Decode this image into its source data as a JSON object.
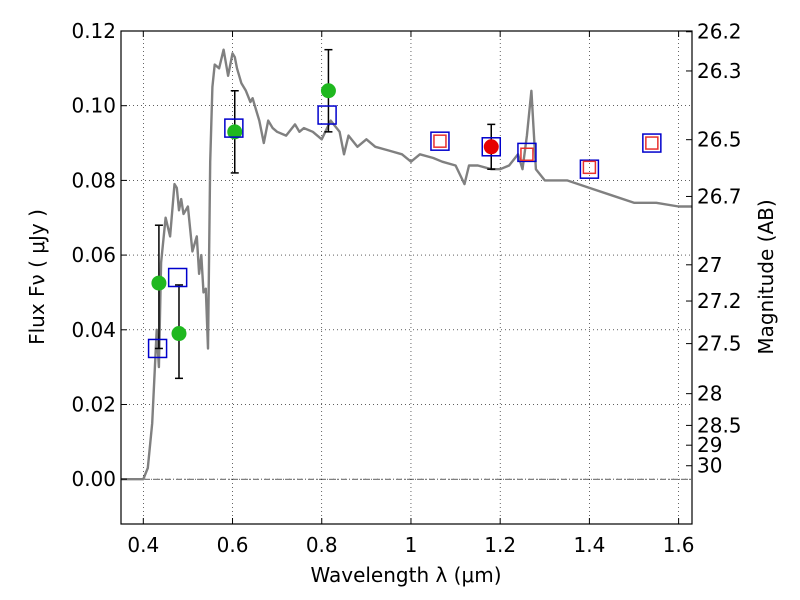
{
  "chart_data": {
    "type": "scatter",
    "xlabel": "Wavelength  λ (μm)",
    "ylabel": "Flux  Fν  ( μJy )",
    "ylabel_right": "Magnitude (AB)",
    "xlim": [
      0.35,
      1.63
    ],
    "ylim": [
      -0.012,
      0.12
    ],
    "grid": true,
    "x_ticks": [
      0.4,
      0.6,
      0.8,
      1.0,
      1.2,
      1.4,
      1.6
    ],
    "x_tick_labels": [
      "0.4",
      "0.6",
      "0.8",
      "1",
      "1.2",
      "1.4",
      "1.6"
    ],
    "y_ticks": [
      0.0,
      0.02,
      0.04,
      0.06,
      0.08,
      0.1,
      0.12
    ],
    "y_tick_labels": [
      "0.00",
      "0.02",
      "0.04",
      "0.06",
      "0.08",
      "0.10",
      "0.12"
    ],
    "right_ticks": [
      {
        "label": "26.2",
        "flux": 0.1198
      },
      {
        "label": "26.3",
        "flux": 0.1093
      },
      {
        "label": "26.5",
        "flux": 0.0909
      },
      {
        "label": "26.7",
        "flux": 0.0757
      },
      {
        "label": "27",
        "flux": 0.0574
      },
      {
        "label": "27.2",
        "flux": 0.0477
      },
      {
        "label": "27.5",
        "flux": 0.0363
      },
      {
        "label": "28",
        "flux": 0.0229
      },
      {
        "label": "28.5",
        "flux": 0.0144
      },
      {
        "label": "29",
        "flux": 0.0091
      },
      {
        "label": "30",
        "flux": 0.0036
      }
    ],
    "series": [
      {
        "kind": "line",
        "color": "#808080",
        "x": [
          0.35,
          0.4,
          0.41,
          0.42,
          0.43,
          0.435,
          0.44,
          0.45,
          0.46,
          0.47,
          0.475,
          0.48,
          0.485,
          0.49,
          0.5,
          0.51,
          0.52,
          0.525,
          0.53,
          0.535,
          0.54,
          0.545,
          0.55,
          0.555,
          0.56,
          0.57,
          0.58,
          0.59,
          0.6,
          0.605,
          0.61,
          0.62,
          0.63,
          0.64,
          0.645,
          0.65,
          0.66,
          0.67,
          0.68,
          0.69,
          0.7,
          0.72,
          0.74,
          0.75,
          0.76,
          0.78,
          0.8,
          0.82,
          0.84,
          0.85,
          0.86,
          0.88,
          0.9,
          0.92,
          0.95,
          0.98,
          1.0,
          1.02,
          1.05,
          1.07,
          1.1,
          1.12,
          1.13,
          1.15,
          1.18,
          1.2,
          1.22,
          1.24,
          1.25,
          1.26,
          1.27,
          1.28,
          1.3,
          1.35,
          1.4,
          1.45,
          1.5,
          1.55,
          1.6,
          1.63
        ],
        "y": [
          0.0,
          0.0,
          0.003,
          0.015,
          0.04,
          0.03,
          0.058,
          0.07,
          0.065,
          0.079,
          0.078,
          0.072,
          0.075,
          0.071,
          0.073,
          0.061,
          0.065,
          0.055,
          0.06,
          0.05,
          0.051,
          0.035,
          0.085,
          0.105,
          0.111,
          0.11,
          0.115,
          0.108,
          0.114,
          0.113,
          0.11,
          0.106,
          0.104,
          0.101,
          0.102,
          0.1,
          0.096,
          0.09,
          0.096,
          0.094,
          0.093,
          0.092,
          0.095,
          0.093,
          0.094,
          0.093,
          0.091,
          0.096,
          0.093,
          0.087,
          0.092,
          0.089,
          0.091,
          0.089,
          0.088,
          0.087,
          0.085,
          0.087,
          0.086,
          0.085,
          0.084,
          0.079,
          0.084,
          0.084,
          0.083,
          0.083,
          0.084,
          0.087,
          0.083,
          0.092,
          0.104,
          0.083,
          0.08,
          0.08,
          0.078,
          0.076,
          0.074,
          0.074,
          0.073,
          0.073
        ]
      },
      {
        "kind": "errorbar",
        "color": "#000000",
        "points": [
          {
            "x": 0.435,
            "lo": 0.035,
            "hi": 0.068
          },
          {
            "x": 0.48,
            "lo": 0.027,
            "hi": 0.052
          },
          {
            "x": 0.605,
            "lo": 0.082,
            "hi": 0.104
          },
          {
            "x": 0.815,
            "lo": 0.093,
            "hi": 0.115
          },
          {
            "x": 1.18,
            "lo": 0.083,
            "hi": 0.095
          }
        ]
      },
      {
        "kind": "circle",
        "color": "#1fb81f",
        "x": [
          0.435,
          0.48,
          0.605,
          0.815
        ],
        "y": [
          0.0525,
          0.039,
          0.093,
          0.104
        ]
      },
      {
        "kind": "square-open",
        "color": "#0000cc",
        "x": [
          0.432,
          0.477,
          0.603,
          0.812,
          1.065,
          1.18,
          1.26,
          1.4,
          1.54
        ],
        "y": [
          0.035,
          0.054,
          0.094,
          0.0975,
          0.0905,
          0.089,
          0.0875,
          0.083,
          0.09
        ]
      },
      {
        "kind": "square-open",
        "color": "#e8302c",
        "x": [
          1.065,
          1.26,
          1.4,
          1.54
        ],
        "y": [
          0.0905,
          0.087,
          0.0835,
          0.09
        ]
      },
      {
        "kind": "circle",
        "color": "#e60000",
        "x": [
          1.18
        ],
        "y": [
          0.089
        ]
      }
    ]
  }
}
